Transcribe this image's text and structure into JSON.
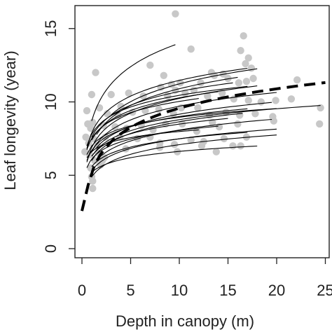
{
  "chart_data": {
    "type": "scatter",
    "title": "",
    "xlabel": "Depth in canopy (m)",
    "ylabel": "Leaf longevity (year)",
    "xlim": [
      0,
      25
    ],
    "ylim": [
      0,
      16
    ],
    "x_ticks": [
      0,
      5,
      10,
      15,
      20,
      25
    ],
    "x_tick_labels": [
      "0",
      "5",
      "10",
      "15",
      "20",
      "25"
    ],
    "y_ticks": [
      0,
      5,
      10,
      15
    ],
    "y_tick_labels": [
      "0",
      "5",
      "10",
      "15"
    ],
    "grid": false,
    "legend": "none",
    "colors": {
      "points": "#c8c8c8",
      "lines": "#000000",
      "fit": "#000000",
      "axis": "#222222"
    },
    "points": [
      [
        9.6,
        16.0
      ],
      [
        16.6,
        14.5
      ],
      [
        11.2,
        13.6
      ],
      [
        16.3,
        13.5
      ],
      [
        17.1,
        13.0
      ],
      [
        16.8,
        12.6
      ],
      [
        17.4,
        12.3
      ],
      [
        17.6,
        11.6
      ],
      [
        1.4,
        12.0
      ],
      [
        7.0,
        12.5
      ],
      [
        8.4,
        11.8
      ],
      [
        8.1,
        11.0
      ],
      [
        9.2,
        11.2
      ],
      [
        10.1,
        11.3
      ],
      [
        12.2,
        11.3
      ],
      [
        13.3,
        12.0
      ],
      [
        13.6,
        11.8
      ],
      [
        14.5,
        11.9
      ],
      [
        15.0,
        11.6
      ],
      [
        16.1,
        11.3
      ],
      [
        16.9,
        11.4
      ],
      [
        1.0,
        10.5
      ],
      [
        3.0,
        10.5
      ],
      [
        4.8,
        10.6
      ],
      [
        6.3,
        10.4
      ],
      [
        8.8,
        10.4
      ],
      [
        9.6,
        10.8
      ],
      [
        10.6,
        10.6
      ],
      [
        11.5,
        10.8
      ],
      [
        12.9,
        10.4
      ],
      [
        14.4,
        10.6
      ],
      [
        15.6,
        10.2
      ],
      [
        17.1,
        10.1
      ],
      [
        18.4,
        10.0
      ],
      [
        19.9,
        10.1
      ],
      [
        21.5,
        10.2
      ],
      [
        22.1,
        11.5
      ],
      [
        24.5,
        9.6
      ],
      [
        0.5,
        9.4
      ],
      [
        1.8,
        9.6
      ],
      [
        2.6,
        9.2
      ],
      [
        3.7,
        9.1
      ],
      [
        5.2,
        9.3
      ],
      [
        6.5,
        9.4
      ],
      [
        7.9,
        9.5
      ],
      [
        9.4,
        9.2
      ],
      [
        10.2,
        9.6
      ],
      [
        11.9,
        9.6
      ],
      [
        13.1,
        9.1
      ],
      [
        14.8,
        9.3
      ],
      [
        16.2,
        9.1
      ],
      [
        17.8,
        9.2
      ],
      [
        19.6,
        9.0
      ],
      [
        0.6,
        8.5
      ],
      [
        0.9,
        8.2
      ],
      [
        1.1,
        8.6
      ],
      [
        2.2,
        8.4
      ],
      [
        3.4,
        8.3
      ],
      [
        4.6,
        8.2
      ],
      [
        6.1,
        8.4
      ],
      [
        7.3,
        8.1
      ],
      [
        8.6,
        8.5
      ],
      [
        10.3,
        8.5
      ],
      [
        11.8,
        8.0
      ],
      [
        13.4,
        8.6
      ],
      [
        14.1,
        8.3
      ],
      [
        16.0,
        8.5
      ],
      [
        19.7,
        8.7
      ],
      [
        24.4,
        8.5
      ],
      [
        0.4,
        7.6
      ],
      [
        0.7,
        7.2
      ],
      [
        1.2,
        7.5
      ],
      [
        1.6,
        7.0
      ],
      [
        2.4,
        7.6
      ],
      [
        3.9,
        7.6
      ],
      [
        5.7,
        7.5
      ],
      [
        7.0,
        7.6
      ],
      [
        8.0,
        7.2
      ],
      [
        9.5,
        7.1
      ],
      [
        11.2,
        7.4
      ],
      [
        12.5,
        7.3
      ],
      [
        14.6,
        7.5
      ],
      [
        16.9,
        7.6
      ],
      [
        0.3,
        6.6
      ],
      [
        0.8,
        6.4
      ],
      [
        1.3,
        6.0
      ],
      [
        1.7,
        6.5
      ],
      [
        2.3,
        6.2
      ],
      [
        4.5,
        6.8
      ],
      [
        8.0,
        6.9
      ],
      [
        12.3,
        7.0
      ],
      [
        13.8,
        6.6
      ],
      [
        15.5,
        7.0
      ],
      [
        16.3,
        7.0
      ],
      [
        0.9,
        5.5
      ],
      [
        1.0,
        4.9
      ],
      [
        1.1,
        4.6
      ],
      [
        1.1,
        4.1
      ],
      [
        1.9,
        5.7
      ],
      [
        2.1,
        6.0
      ],
      [
        9.8,
        6.6
      ],
      [
        4.0,
        9.7
      ]
    ],
    "fitted_curves": [
      {
        "x": [
          1.0,
          9.6
        ],
        "a": 8.7,
        "b": 2.3
      },
      {
        "x": [
          3.0,
          18.0
        ],
        "a": 7.2,
        "b": 1.75
      },
      {
        "x": [
          0.5,
          17.0
        ],
        "a": 7.9,
        "b": 1.55
      },
      {
        "x": [
          1.5,
          16.0
        ],
        "a": 7.1,
        "b": 1.65
      },
      {
        "x": [
          1.0,
          15.5
        ],
        "a": 7.6,
        "b": 1.35
      },
      {
        "x": [
          0.5,
          18.0
        ],
        "a": 6.9,
        "b": 1.45
      },
      {
        "x": [
          1.0,
          14.0
        ],
        "a": 7.4,
        "b": 1.25
      },
      {
        "x": [
          0.5,
          17.0
        ],
        "a": 7.8,
        "b": 1.15
      },
      {
        "x": [
          1.0,
          20.0
        ],
        "a": 6.6,
        "b": 1.35
      },
      {
        "x": [
          0.5,
          12.0
        ],
        "a": 7.5,
        "b": 1.1
      },
      {
        "x": [
          1.5,
          19.5
        ],
        "a": 6.4,
        "b": 1.2
      },
      {
        "x": [
          1.0,
          24.5
        ],
        "a": 6.3,
        "b": 1.08
      },
      {
        "x": [
          0.5,
          17.0
        ],
        "a": 6.7,
        "b": 1.0
      },
      {
        "x": [
          1.0,
          16.5
        ],
        "a": 6.0,
        "b": 1.15
      },
      {
        "x": [
          0.5,
          20.0
        ],
        "a": 7.0,
        "b": 0.85
      },
      {
        "x": [
          1.0,
          15.0
        ],
        "a": 6.3,
        "b": 0.95
      },
      {
        "x": [
          1.5,
          19.5
        ],
        "a": 5.6,
        "b": 1.08
      },
      {
        "x": [
          1.0,
          20.0
        ],
        "a": 5.3,
        "b": 0.95
      },
      {
        "x": [
          0.5,
          14.0
        ],
        "a": 6.1,
        "b": 0.85
      },
      {
        "x": [
          1.0,
          17.0
        ],
        "a": 5.6,
        "b": 0.82
      },
      {
        "x": [
          1.0,
          20.0
        ],
        "a": 4.9,
        "b": 0.95
      },
      {
        "x": [
          1.0,
          18.0
        ],
        "a": 5.2,
        "b": 0.62
      },
      {
        "x": [
          0.5,
          12.0
        ],
        "a": 6.6,
        "b": 0.6
      }
    ],
    "overall_fit": {
      "x": [
        0,
        25
      ],
      "a": 5.2,
      "b": 1.9,
      "style": "dashed"
    }
  }
}
